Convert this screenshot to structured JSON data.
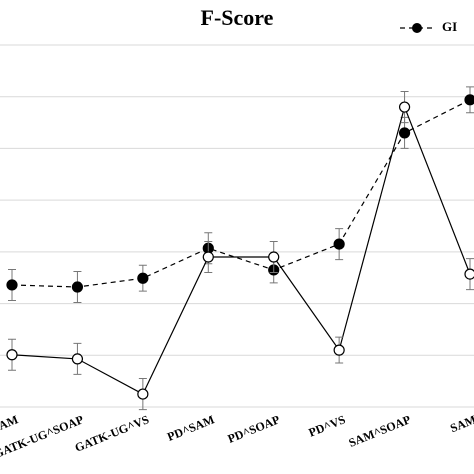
{
  "chart_data": {
    "type": "line",
    "title": "F-Score",
    "categories": [
      "-UG^SAM",
      "GATK-UG^SOAP",
      "GATK-UG^VS",
      "PD^SAM",
      "PD^SOAP",
      "PD^VS",
      "SAM^SOAP",
      "SAM"
    ],
    "series": [
      {
        "name": "GI",
        "color": "#000000",
        "dashed": true,
        "filled": true,
        "values": [
          2.36,
          2.32,
          2.49,
          3.07,
          2.65,
          3.15,
          5.3,
          5.94
        ],
        "errors": [
          0.3,
          0.3,
          0.25,
          0.3,
          0.25,
          0.3,
          0.3,
          0.25
        ]
      },
      {
        "color": "#000000",
        "dashed": false,
        "filled": false,
        "values": [
          1.01,
          0.93,
          0.25,
          2.9,
          2.9,
          1.1,
          5.8,
          2.57
        ],
        "errors": [
          0.3,
          0.3,
          0.3,
          0.3,
          0.3,
          0.25,
          0.3,
          0.3
        ]
      }
    ],
    "ylim": [
      0,
      7
    ],
    "yticks": [
      0,
      1,
      2,
      3,
      4,
      5,
      6,
      7
    ],
    "grid": true,
    "legend": "top-right"
  }
}
